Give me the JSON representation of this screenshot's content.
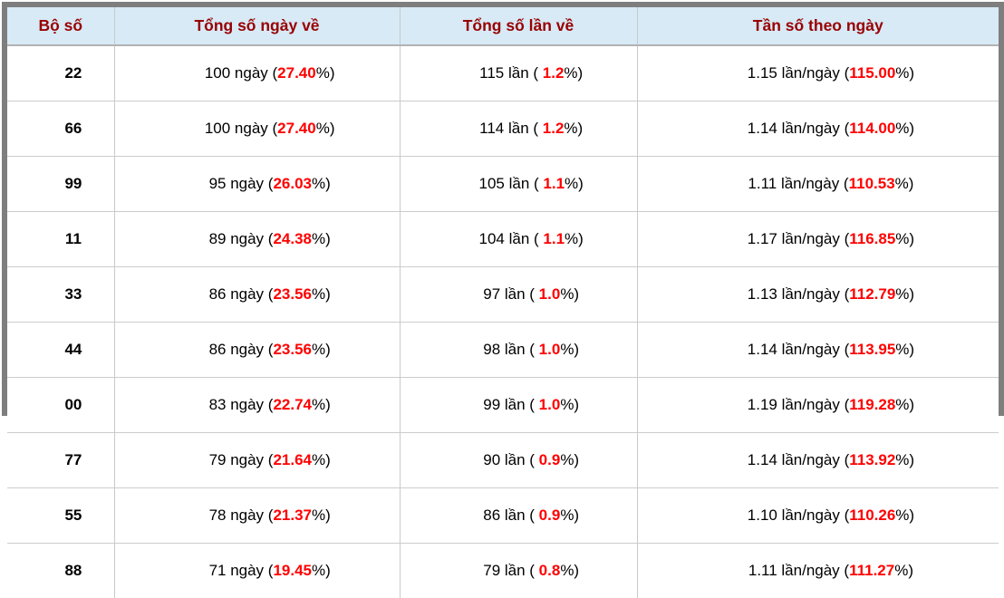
{
  "colors": {
    "frame_gray": "#7e7e7e",
    "header_bg": "#d7eaf6",
    "header_text": "#990000",
    "highlight_red": "#ff0000",
    "grid_line": "#cccccc"
  },
  "table": {
    "headers": [
      "Bộ số",
      "Tổng số ngày về",
      "Tổng số lần về",
      "Tần số theo ngày"
    ],
    "rows": [
      {
        "pair": "22",
        "days_prefix": "100 ngày (",
        "days_red": "27.40",
        "days_suffix": "%)",
        "times_prefix": "115 lần ( ",
        "times_red": "1.2",
        "times_suffix": "%)",
        "freq_prefix": "1.15 lần/ngày (",
        "freq_red": "115.00",
        "freq_suffix": "%)"
      },
      {
        "pair": "66",
        "days_prefix": "100 ngày (",
        "days_red": "27.40",
        "days_suffix": "%)",
        "times_prefix": "114 lần ( ",
        "times_red": "1.2",
        "times_suffix": "%)",
        "freq_prefix": "1.14 lần/ngày (",
        "freq_red": "114.00",
        "freq_suffix": "%)"
      },
      {
        "pair": "99",
        "days_prefix": "95 ngày (",
        "days_red": "26.03",
        "days_suffix": "%)",
        "times_prefix": "105 lần ( ",
        "times_red": "1.1",
        "times_suffix": "%)",
        "freq_prefix": "1.11 lần/ngày (",
        "freq_red": "110.53",
        "freq_suffix": "%)"
      },
      {
        "pair": "11",
        "days_prefix": "89 ngày (",
        "days_red": "24.38",
        "days_suffix": "%)",
        "times_prefix": "104 lần ( ",
        "times_red": "1.1",
        "times_suffix": "%)",
        "freq_prefix": "1.17 lần/ngày (",
        "freq_red": "116.85",
        "freq_suffix": "%)"
      },
      {
        "pair": "33",
        "days_prefix": "86 ngày (",
        "days_red": "23.56",
        "days_suffix": "%)",
        "times_prefix": "97 lần ( ",
        "times_red": "1.0",
        "times_suffix": "%)",
        "freq_prefix": "1.13 lần/ngày (",
        "freq_red": "112.79",
        "freq_suffix": "%)"
      },
      {
        "pair": "44",
        "days_prefix": "86 ngày (",
        "days_red": "23.56",
        "days_suffix": "%)",
        "times_prefix": "98 lần ( ",
        "times_red": "1.0",
        "times_suffix": "%)",
        "freq_prefix": "1.14 lần/ngày (",
        "freq_red": "113.95",
        "freq_suffix": "%)"
      },
      {
        "pair": "00",
        "days_prefix": "83 ngày (",
        "days_red": "22.74",
        "days_suffix": "%)",
        "times_prefix": "99 lần ( ",
        "times_red": "1.0",
        "times_suffix": "%)",
        "freq_prefix": "1.19 lần/ngày (",
        "freq_red": "119.28",
        "freq_suffix": "%)"
      },
      {
        "pair": "77",
        "days_prefix": "79 ngày (",
        "days_red": "21.64",
        "days_suffix": "%)",
        "times_prefix": "90 lần ( ",
        "times_red": "0.9",
        "times_suffix": "%)",
        "freq_prefix": "1.14 lần/ngày (",
        "freq_red": "113.92",
        "freq_suffix": "%)"
      },
      {
        "pair": "55",
        "days_prefix": "78 ngày (",
        "days_red": "21.37",
        "days_suffix": "%)",
        "times_prefix": "86 lần ( ",
        "times_red": "0.9",
        "times_suffix": "%)",
        "freq_prefix": "1.10 lần/ngày (",
        "freq_red": "110.26",
        "freq_suffix": "%)"
      },
      {
        "pair": "88",
        "days_prefix": "71 ngày (",
        "days_red": "19.45",
        "days_suffix": "%)",
        "times_prefix": "79 lần ( ",
        "times_red": "0.8",
        "times_suffix": "%)",
        "freq_prefix": "1.11 lần/ngày (",
        "freq_red": "111.27",
        "freq_suffix": "%)"
      }
    ]
  }
}
